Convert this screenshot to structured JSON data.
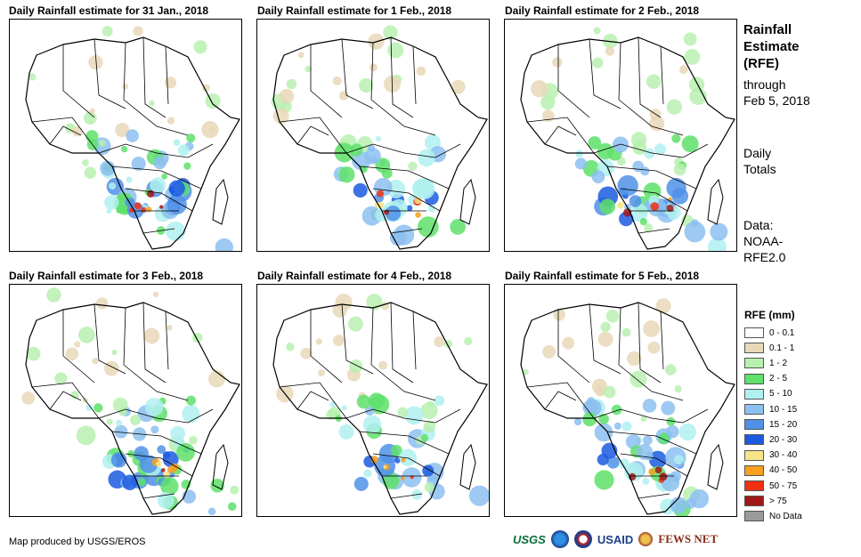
{
  "panels": [
    {
      "title": "Daily Rainfall estimate for 31 Jan., 2018",
      "intensity": [
        0.9,
        0.7,
        0.2
      ]
    },
    {
      "title": "Daily Rainfall estimate for 1 Feb., 2018",
      "intensity": [
        0.6,
        0.9,
        0.3
      ]
    },
    {
      "title": "Daily Rainfall estimate for 2 Feb., 2018",
      "intensity": [
        0.8,
        0.6,
        0.5
      ]
    },
    {
      "title": "Daily Rainfall estimate for 3 Feb., 2018",
      "intensity": [
        0.9,
        0.7,
        0.6
      ]
    },
    {
      "title": "Daily Rainfall estimate for 4 Feb., 2018",
      "intensity": [
        0.5,
        0.8,
        0.3
      ]
    },
    {
      "title": "Daily Rainfall estimate for 5 Feb., 2018",
      "intensity": [
        0.7,
        0.6,
        0.4
      ]
    }
  ],
  "side": {
    "title_line1": "Rainfall",
    "title_line2": "Estimate",
    "title_line3": "(RFE)",
    "through_label": "through",
    "through_date": "Feb 5, 2018",
    "daily_line1": "Daily",
    "daily_line2": "Totals",
    "data_line1": "Data:",
    "data_line2": "NOAA-",
    "data_line3": "RFE2.0"
  },
  "legend": {
    "title": "RFE (mm)",
    "items": [
      {
        "label": "0 - 0.1",
        "color": "#ffffff"
      },
      {
        "label": "0.1 - 1",
        "color": "#e8d8b8"
      },
      {
        "label": "1 - 2",
        "color": "#b8f0b0"
      },
      {
        "label": "2 - 5",
        "color": "#5ee06a"
      },
      {
        "label": "5 - 10",
        "color": "#b0f0f0"
      },
      {
        "label": "10 - 15",
        "color": "#8cc0f0"
      },
      {
        "label": "15 - 20",
        "color": "#5090e8"
      },
      {
        "label": "20 - 30",
        "color": "#1c5ae0"
      },
      {
        "label": "30 - 40",
        "color": "#f8e488"
      },
      {
        "label": "40 - 50",
        "color": "#f8a020"
      },
      {
        "label": "50 - 75",
        "color": "#f03010"
      },
      {
        "label": "> 75",
        "color": "#a01818"
      },
      {
        "label": "No Data",
        "color": "#9a9a9a"
      }
    ]
  },
  "footer": {
    "credit": "Map produced by USGS/EROS"
  },
  "logos": {
    "usgs": "USGS",
    "noaa": "NOAA",
    "usaid": "USAID",
    "fews": "FEWS NET"
  }
}
